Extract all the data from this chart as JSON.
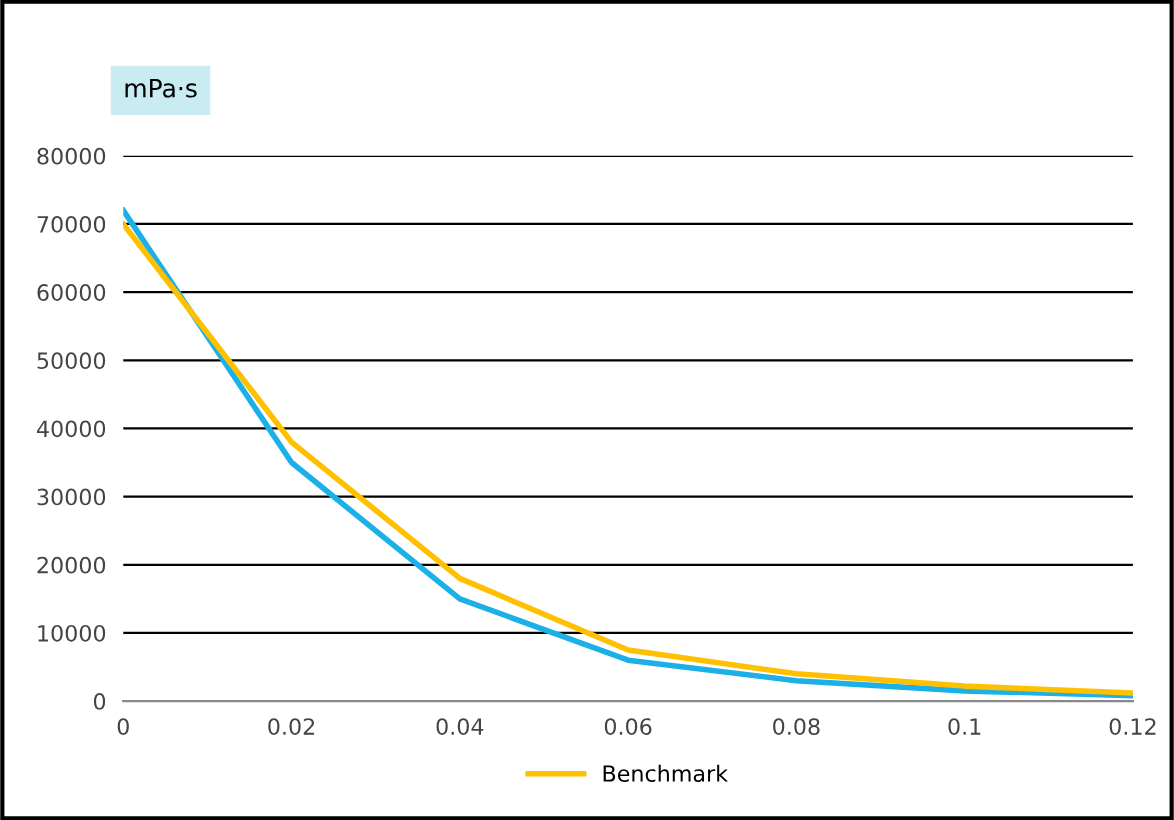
{
  "chart_data": {
    "type": "line",
    "ylabel": "mPa·s",
    "x": [
      0,
      0.02,
      0.04,
      0.06,
      0.08,
      0.1,
      0.12
    ],
    "series": [
      {
        "color": "#1cb0e8",
        "values": [
          72000,
          35000,
          15000,
          6000,
          3000,
          1500,
          800
        ]
      },
      {
        "name": "Benchmark",
        "color": "#ffc000",
        "values": [
          70000,
          38000,
          18000,
          7500,
          4000,
          2200,
          1200
        ]
      }
    ],
    "xlim": [
      0,
      0.12
    ],
    "xticks": [
      0,
      0.02,
      0.04,
      0.06,
      0.08,
      0.1,
      0.12
    ],
    "ylim": [
      0,
      80000
    ],
    "yticks": [
      0,
      10000,
      20000,
      30000,
      40000,
      50000,
      60000,
      70000,
      80000
    ],
    "grid": "y",
    "legend": "bottom",
    "marker": "none",
    "line_style": "solid"
  }
}
